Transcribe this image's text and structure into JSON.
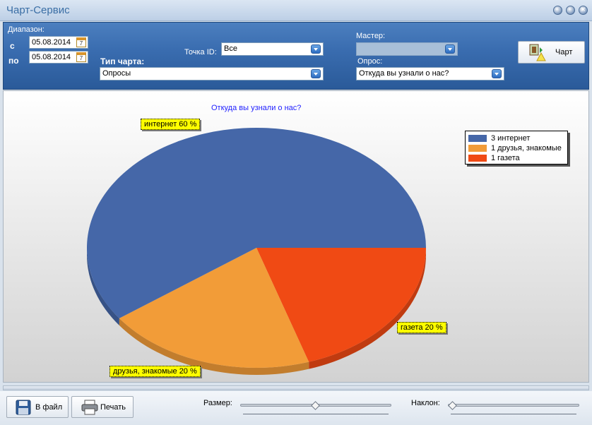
{
  "window": {
    "title": "Чарт-Сервис"
  },
  "toolbar": {
    "range_label": "Диапазон:",
    "from_label": "с",
    "to_label": "по",
    "date_from": "05.08.2014",
    "date_to": "05.08.2014",
    "calendar_glyph": "7",
    "point_id_label": "Точка ID:",
    "point_id_value": "Все",
    "chart_type_label": "Тип чарта:",
    "chart_type_value": "Опросы",
    "master_label": "Мастер:",
    "master_value": "",
    "poll_label": "Опрос:",
    "poll_value": "Откуда вы узнали о нас?",
    "chart_button_label": "Чарт"
  },
  "chart_data": {
    "type": "pie",
    "title": "Откуда вы узнали о нас?",
    "slices": [
      {
        "name": "интернет",
        "count": 3,
        "percent": 60,
        "color": "#4567a8",
        "label": "интернет 60 %"
      },
      {
        "name": "друзья, знакомые",
        "count": 1,
        "percent": 20,
        "color": "#f29c38",
        "label": "друзья, знакомые 20 %"
      },
      {
        "name": "газета",
        "count": 1,
        "percent": 20,
        "color": "#f04a14",
        "label": "газета 20 %"
      }
    ],
    "legend": [
      {
        "text": "3 интернет",
        "color": "#4567a8"
      },
      {
        "text": "1 друзья, знакомые",
        "color": "#f29c38"
      },
      {
        "text": "1 газета",
        "color": "#f04a14"
      }
    ],
    "legend_placement": "top-right"
  },
  "bottom": {
    "save_label": "В файл",
    "print_label": "Печать",
    "size_label": "Размер:",
    "tilt_label": "Наклон:",
    "size_value": 0.5,
    "tilt_value": 0.0
  }
}
